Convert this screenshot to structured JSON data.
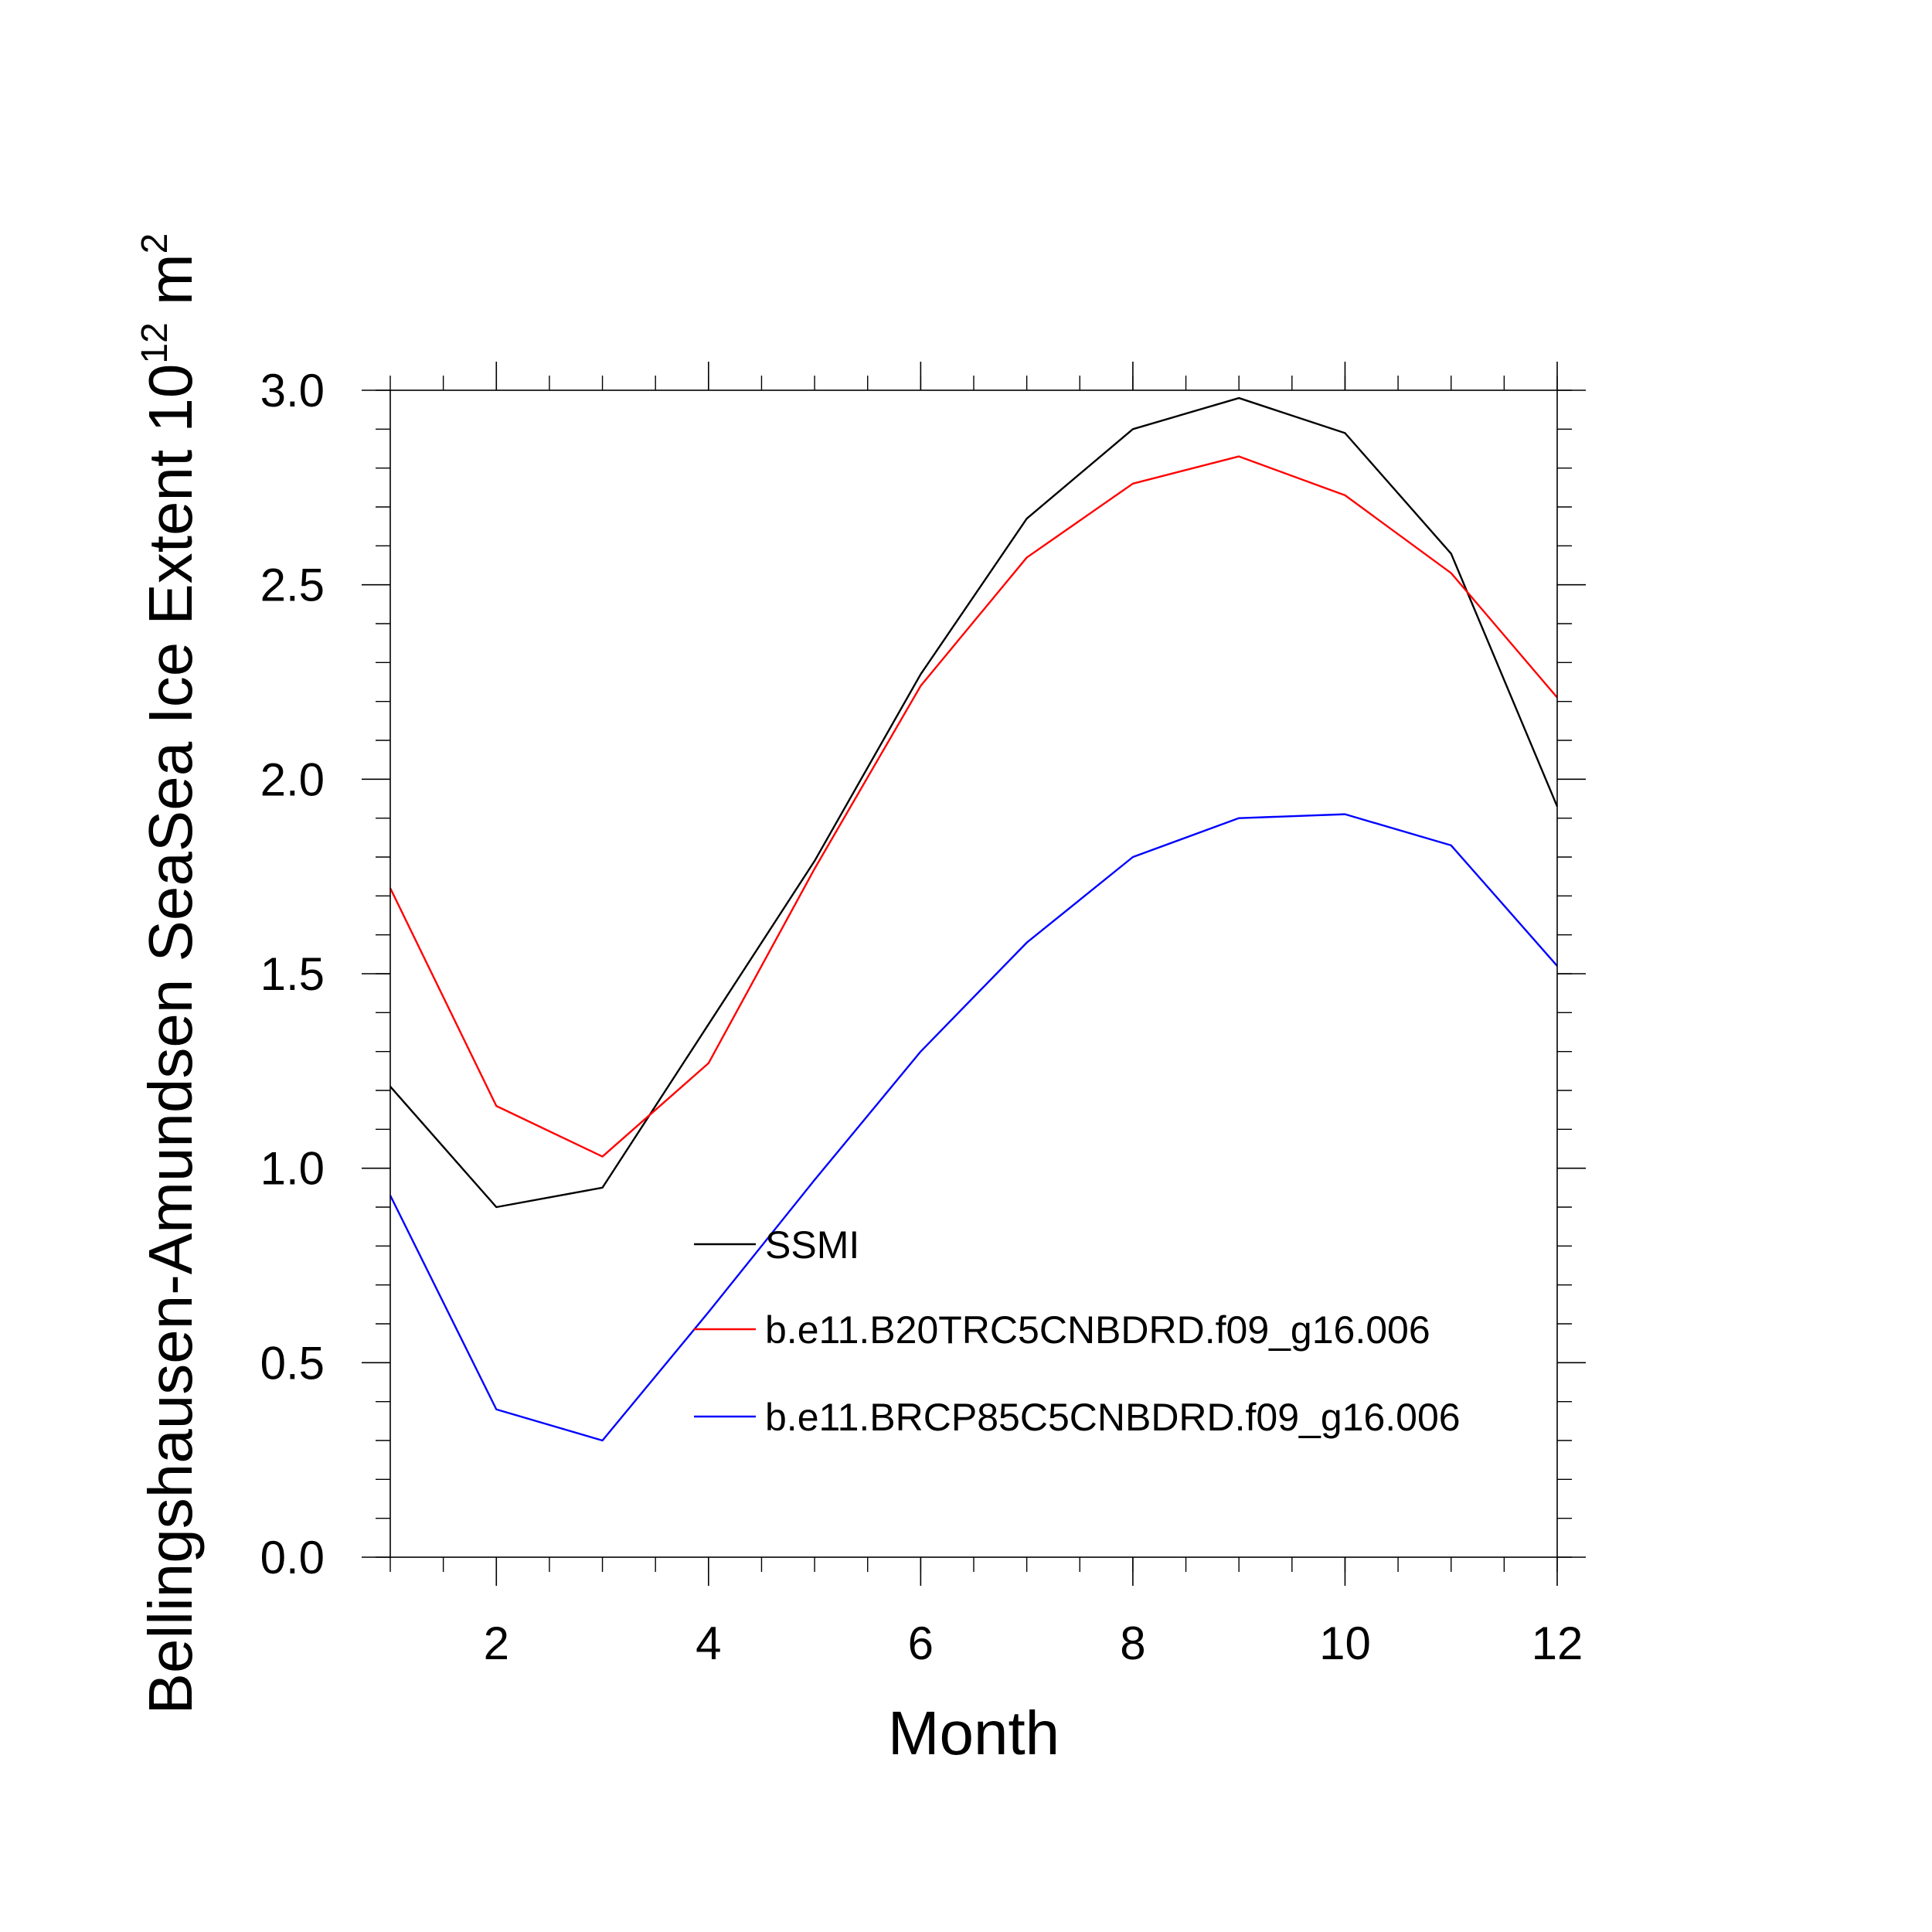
{
  "chart_data": {
    "type": "line",
    "xlabel": "Month",
    "ylabel": {
      "text": "Bellingshausen-Amundsen SeaSea Ice Extent 10",
      "superscript_exponent": "12",
      "unit": " m",
      "superscript_unit": "2"
    },
    "xlim": [
      1,
      12
    ],
    "ylim": [
      0,
      3
    ],
    "x_ticks": [
      2,
      4,
      6,
      8,
      10,
      12
    ],
    "x_tick_labels": [
      "2",
      "4",
      "6",
      "8",
      "10",
      "12"
    ],
    "y_ticks": [
      0,
      0.5,
      1,
      1.5,
      2,
      2.5,
      3
    ],
    "y_tick_labels": [
      "0.0",
      "0.5",
      "1.0",
      "1.5",
      "2.0",
      "2.5",
      "3.0"
    ],
    "x": [
      1,
      2,
      3,
      4,
      5,
      6,
      7,
      8,
      9,
      10,
      11,
      12
    ],
    "grid": false,
    "legend_position": "bottom-center inside plot",
    "series": [
      {
        "name": "SSMI",
        "color": "#000000",
        "values": [
          1.21,
          0.9,
          0.95,
          1.37,
          1.79,
          2.27,
          2.67,
          2.9,
          2.98,
          2.89,
          2.58,
          1.93
        ]
      },
      {
        "name": "b.e11.B20TRC5CNBDRD.f09_g16.006",
        "color": "#ff0000",
        "values": [
          1.72,
          1.16,
          1.03,
          1.27,
          1.77,
          2.24,
          2.57,
          2.76,
          2.83,
          2.73,
          2.53,
          2.21
        ]
      },
      {
        "name": "b.e11.BRCP85C5CNBDRD.f09_g16.006",
        "color": "#0000ff",
        "values": [
          0.93,
          0.38,
          0.3,
          0.63,
          0.97,
          1.3,
          1.58,
          1.8,
          1.9,
          1.91,
          1.83,
          1.52
        ]
      }
    ]
  }
}
